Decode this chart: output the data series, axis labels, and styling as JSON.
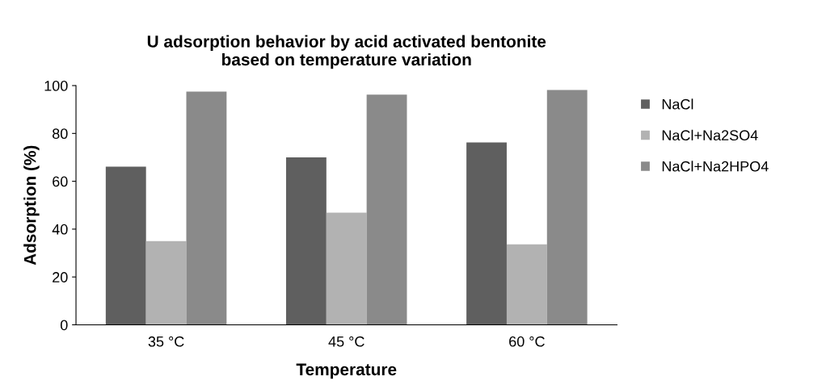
{
  "chart_data": {
    "type": "bar",
    "title": "U adsorption behavior by acid activated bentonite\nbased on temperature variation",
    "xlabel": "Temperature",
    "ylabel": "Adsorption (%)",
    "categories": [
      "35 °C",
      "45 °C",
      "60 °C"
    ],
    "series": [
      {
        "name": "NaCl",
        "color": "#5f5f5f",
        "values": [
          66.1,
          70.0,
          76.2
        ]
      },
      {
        "name": "NaCl+Na2SO4",
        "color": "#b2b2b2",
        "values": [
          35.0,
          46.9,
          33.6
        ]
      },
      {
        "name": "NaCl+Na2HPO4",
        "color": "#8a8a8a",
        "values": [
          97.5,
          96.2,
          98.2
        ]
      }
    ],
    "ylim": [
      0,
      100
    ],
    "yticks": [
      0,
      20,
      40,
      60,
      80,
      100
    ],
    "grid": false,
    "legend": "right"
  }
}
